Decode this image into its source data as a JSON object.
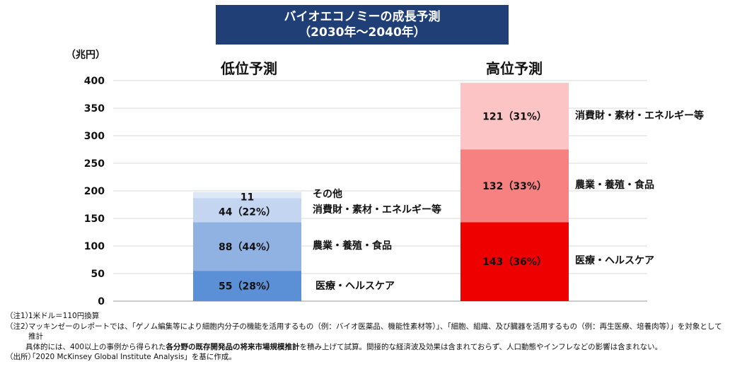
{
  "title": {
    "line1": "バイオエコノミーの成長予測",
    "line2": "（2030年～2040年）"
  },
  "colors": {
    "title_bg": "#1f3f76",
    "low_segments": [
      "#5b8fd6",
      "#8fb2e3",
      "#c3d5f0",
      "#dde7f6"
    ],
    "high_segments": [
      "#ee0000",
      "#f78080",
      "#fcc4c4"
    ]
  },
  "chart_data": {
    "type": "bar",
    "stacked": true,
    "unit_label": "（兆円）",
    "ylim": [
      0,
      400
    ],
    "yticks": [
      0,
      50,
      100,
      150,
      200,
      250,
      300,
      350,
      400
    ],
    "grid": true,
    "bars": [
      {
        "name": "低位予測",
        "segments": [
          {
            "value": 55,
            "label": "55（28%）",
            "category": "医療・ヘルスケア"
          },
          {
            "value": 88,
            "label": "88（44%）",
            "category": "農業・養殖・食品"
          },
          {
            "value": 44,
            "label": "44（22%）",
            "category": "消費財・素材・エネルギー等"
          },
          {
            "value": 11,
            "label": "11",
            "category": "その他"
          }
        ]
      },
      {
        "name": "高位予測",
        "segments": [
          {
            "value": 143,
            "label": "143（36%）",
            "category": "医療・ヘルスケア"
          },
          {
            "value": 132,
            "label": "132（33%）",
            "category": "農業・養殖・食品"
          },
          {
            "value": 121,
            "label": "121（31%）",
            "category": "消費財・素材・エネルギー等"
          }
        ]
      }
    ]
  },
  "notes": [
    {
      "label": "（注1）",
      "text": "1米ドル＝110円換算"
    },
    {
      "label": "（注2）",
      "text": "マッキンゼーのレポートでは、「ゲノム編集等により細胞内分子の機能を活用するもの（例：バイオ医薬品、機能性素材等）」、「細胞、組織、及び臓器を活用するもの（例：再生医療、培養肉等）」を対象として推計"
    },
    {
      "label": "",
      "text_before": "具体的には、400以上の事例から得られた",
      "text_bold": "各分野の既存開発品の将来市場規模推計",
      "text_after": "を積み上げて試算。間接的な経済波及効果は含まれておらず、人口動態やインフレなどの影響は含まれない。"
    },
    {
      "label": "（出所）",
      "text": "「2020 McKinsey Global Institute Analysis」を基に作成。"
    }
  ]
}
